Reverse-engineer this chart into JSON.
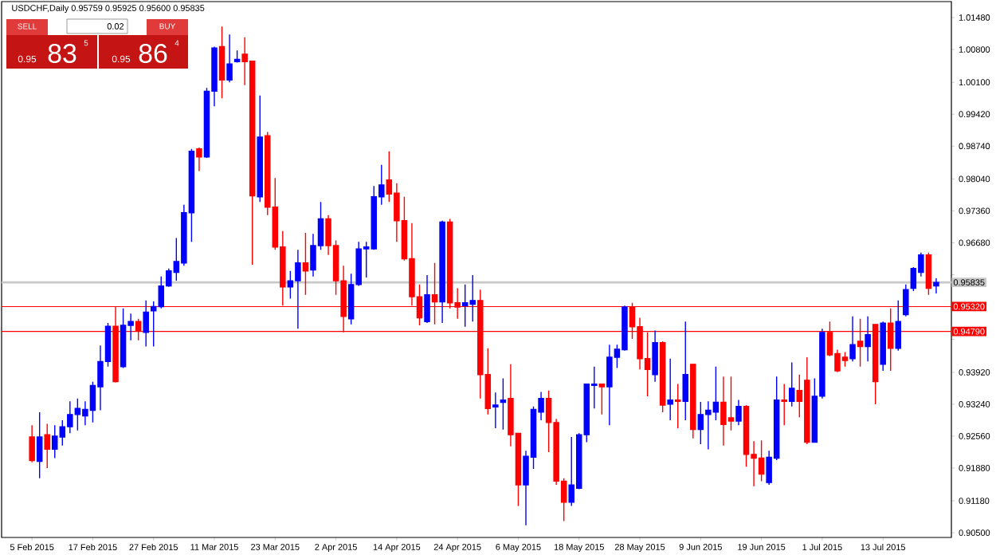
{
  "chart_data": {
    "type": "candlestick",
    "title": "USDCHF,Daily 0.95759 0.95925 0.95600 0.95835",
    "annotations": [
      "SELL",
      "0.02",
      "BUY",
      "0.95",
      "83",
      "5",
      "0.95",
      "86",
      "4"
    ],
    "categories": [
      "5 Feb 2015",
      null,
      null,
      null,
      null,
      null,
      null,
      null,
      "17 Feb 2015",
      null,
      null,
      null,
      null,
      null,
      null,
      null,
      "27 Feb 2015",
      null,
      null,
      null,
      null,
      null,
      null,
      null,
      "11 Mar 2015",
      null,
      null,
      null,
      null,
      null,
      null,
      null,
      "23 Mar 2015",
      null,
      null,
      null,
      null,
      null,
      null,
      null,
      "2 Apr 2015",
      null,
      null,
      null,
      null,
      null,
      null,
      null,
      "14 Apr 2015",
      null,
      null,
      null,
      null,
      null,
      null,
      null,
      "24 Apr 2015",
      null,
      null,
      null,
      null,
      null,
      null,
      null,
      "6 May 2015",
      null,
      null,
      null,
      null,
      null,
      null,
      null,
      "18 May 2015",
      null,
      null,
      null,
      null,
      null,
      null,
      null,
      "28 May 2015",
      null,
      null,
      null,
      null,
      null,
      null,
      null,
      "9 Jun 2015",
      null,
      null,
      null,
      null,
      null,
      null,
      null,
      "19 Jun 2015",
      null,
      null,
      null,
      null,
      null,
      null,
      null,
      "1 Jul 2015",
      null,
      null,
      null,
      null,
      null,
      null,
      null,
      "13 Jul 2015",
      null,
      null,
      null,
      null,
      null,
      null,
      null
    ],
    "ohlc": [
      [
        0.9254,
        0.9279,
        0.92,
        0.9204
      ],
      [
        0.9202,
        0.9307,
        0.9166,
        0.9254
      ],
      [
        0.9259,
        0.9282,
        0.9188,
        0.9228
      ],
      [
        0.9228,
        0.9279,
        0.9209,
        0.9256
      ],
      [
        0.9254,
        0.929,
        0.9236,
        0.9276
      ],
      [
        0.9276,
        0.933,
        0.9262,
        0.9302
      ],
      [
        0.9302,
        0.9336,
        0.9268,
        0.9315
      ],
      [
        0.9299,
        0.933,
        0.9279,
        0.9313
      ],
      [
        0.9311,
        0.9372,
        0.9285,
        0.9364
      ],
      [
        0.9361,
        0.9449,
        0.9311,
        0.9415
      ],
      [
        0.9415,
        0.9497,
        0.9404,
        0.949
      ],
      [
        0.949,
        0.9531,
        0.937,
        0.9372
      ],
      [
        0.9404,
        0.9528,
        0.9401,
        0.9492
      ],
      [
        0.9492,
        0.9517,
        0.946,
        0.95
      ],
      [
        0.95,
        0.9506,
        0.946,
        0.9481
      ],
      [
        0.9477,
        0.9545,
        0.9447,
        0.952
      ],
      [
        0.9523,
        0.9543,
        0.9447,
        0.9532
      ],
      [
        0.9532,
        0.9596,
        0.9528,
        0.9576
      ],
      [
        0.9576,
        0.9613,
        0.9574,
        0.9608
      ],
      [
        0.9605,
        0.9678,
        0.9587,
        0.9628
      ],
      [
        0.9625,
        0.9749,
        0.9619,
        0.9732
      ],
      [
        0.9732,
        0.9868,
        0.967,
        0.9863
      ],
      [
        0.9868,
        0.9871,
        0.9821,
        0.9851
      ],
      [
        0.9851,
        0.9998,
        0.9849,
        0.9991
      ],
      [
        0.9991,
        1.0086,
        0.9959,
        1.0083
      ],
      [
        1.0086,
        1.0129,
        0.9976,
        1.0015
      ],
      [
        1.0015,
        1.0112,
        1.001,
        1.0049
      ],
      [
        1.0054,
        1.0078,
        1.0052,
        1.0059
      ],
      [
        1.007,
        1.0106,
        1.0004,
        1.0054
      ],
      [
        1.0055,
        1.0055,
        0.9621,
        0.9768
      ],
      [
        0.9766,
        0.9982,
        0.9755,
        0.9893
      ],
      [
        0.9896,
        0.9904,
        0.9727,
        0.9744
      ],
      [
        0.9744,
        0.9806,
        0.9653,
        0.9659
      ],
      [
        0.9659,
        0.9693,
        0.9534,
        0.9574
      ],
      [
        0.9574,
        0.9608,
        0.9549,
        0.9587
      ],
      [
        0.9587,
        0.9653,
        0.9485,
        0.9625
      ],
      [
        0.9625,
        0.9689,
        0.9557,
        0.9608
      ],
      [
        0.961,
        0.9687,
        0.9596,
        0.9662
      ],
      [
        0.9662,
        0.9755,
        0.9653,
        0.9719
      ],
      [
        0.9719,
        0.9727,
        0.9642,
        0.9662
      ],
      [
        0.9662,
        0.9673,
        0.9557,
        0.9587
      ],
      [
        0.9587,
        0.9619,
        0.9477,
        0.9511
      ],
      [
        0.9506,
        0.9602,
        0.9494,
        0.9579
      ],
      [
        0.9579,
        0.967,
        0.9576,
        0.9655
      ],
      [
        0.9655,
        0.967,
        0.9594,
        0.9659
      ],
      [
        0.9655,
        0.9789,
        0.9653,
        0.9766
      ],
      [
        0.9766,
        0.9834,
        0.9749,
        0.9791
      ],
      [
        0.9802,
        0.9863,
        0.9755,
        0.9772
      ],
      [
        0.9774,
        0.9795,
        0.967,
        0.9715
      ],
      [
        0.9715,
        0.9766,
        0.963,
        0.9634
      ],
      [
        0.9634,
        0.971,
        0.9534,
        0.9553
      ],
      [
        0.9553,
        0.9579,
        0.9492,
        0.9508
      ],
      [
        0.95,
        0.9599,
        0.9497,
        0.9557
      ],
      [
        0.9557,
        0.9625,
        0.9494,
        0.9542
      ],
      [
        0.9542,
        0.9715,
        0.9497,
        0.9712
      ],
      [
        0.9712,
        0.9719,
        0.9528,
        0.954
      ],
      [
        0.954,
        0.9571,
        0.9506,
        0.9531
      ],
      [
        0.9534,
        0.9579,
        0.9489,
        0.954
      ],
      [
        0.9537,
        0.9599,
        0.95,
        0.9545
      ],
      [
        0.9545,
        0.9568,
        0.9336,
        0.9387
      ],
      [
        0.9387,
        0.9443,
        0.9302,
        0.9315
      ],
      [
        0.9318,
        0.9349,
        0.9273,
        0.9322
      ],
      [
        0.9328,
        0.9379,
        0.927,
        0.9333
      ],
      [
        0.9336,
        0.9409,
        0.9234,
        0.9259
      ],
      [
        0.9262,
        0.9262,
        0.9107,
        0.9152
      ],
      [
        0.9152,
        0.9225,
        0.9066,
        0.9213
      ],
      [
        0.9211,
        0.9319,
        0.9186,
        0.9313
      ],
      [
        0.9307,
        0.935,
        0.929,
        0.9336
      ],
      [
        0.9336,
        0.9353,
        0.9222,
        0.9285
      ],
      [
        0.9285,
        0.9293,
        0.9152,
        0.916
      ],
      [
        0.916,
        0.9166,
        0.9075,
        0.9115
      ],
      [
        0.9115,
        0.9254,
        0.9107,
        0.9152
      ],
      [
        0.9145,
        0.9262,
        0.9143,
        0.9259
      ],
      [
        0.9259,
        0.9367,
        0.9243,
        0.9367
      ],
      [
        0.9364,
        0.9404,
        0.9315,
        0.9367
      ],
      [
        0.9367,
        0.9367,
        0.9302,
        0.9361
      ],
      [
        0.9361,
        0.9451,
        0.9279,
        0.9424
      ],
      [
        0.9424,
        0.9451,
        0.9401,
        0.9441
      ],
      [
        0.944,
        0.9534,
        0.9438,
        0.9531
      ],
      [
        0.9531,
        0.954,
        0.9463,
        0.9489
      ],
      [
        0.9489,
        0.9508,
        0.9398,
        0.9421
      ],
      [
        0.9421,
        0.9477,
        0.9341,
        0.9398
      ],
      [
        0.9387,
        0.9481,
        0.9372,
        0.9455
      ],
      [
        0.9455,
        0.9458,
        0.9307,
        0.9322
      ],
      [
        0.9324,
        0.9421,
        0.929,
        0.9333
      ],
      [
        0.9333,
        0.9367,
        0.9273,
        0.933
      ],
      [
        0.933,
        0.95,
        0.929,
        0.9387
      ],
      [
        0.9409,
        0.9409,
        0.9251,
        0.927
      ],
      [
        0.927,
        0.9329,
        0.9239,
        0.9302
      ],
      [
        0.9302,
        0.933,
        0.9228,
        0.9311
      ],
      [
        0.9307,
        0.9404,
        0.929,
        0.9328
      ],
      [
        0.9328,
        0.9383,
        0.9236,
        0.9281
      ],
      [
        0.9295,
        0.9383,
        0.9268,
        0.9288
      ],
      [
        0.9288,
        0.9333,
        0.9279,
        0.9319
      ],
      [
        0.9319,
        0.9322,
        0.9191,
        0.9217
      ],
      [
        0.9217,
        0.9245,
        0.9149,
        0.9209
      ],
      [
        0.9209,
        0.9247,
        0.916,
        0.9175
      ],
      [
        0.9157,
        0.9225,
        0.9152,
        0.9211
      ],
      [
        0.9209,
        0.9383,
        0.9205,
        0.9333
      ],
      [
        0.9333,
        0.9367,
        0.9279,
        0.933
      ],
      [
        0.933,
        0.9413,
        0.9319,
        0.9358
      ],
      [
        0.9353,
        0.9387,
        0.9296,
        0.933
      ],
      [
        0.9375,
        0.9424,
        0.9239,
        0.9243
      ],
      [
        0.9243,
        0.9379,
        0.9242,
        0.9341
      ],
      [
        0.9341,
        0.9485,
        0.9336,
        0.9477
      ],
      [
        0.9477,
        0.95,
        0.9426,
        0.9429
      ],
      [
        0.9432,
        0.944,
        0.9392,
        0.9395
      ],
      [
        0.9424,
        0.9435,
        0.9404,
        0.9417
      ],
      [
        0.9421,
        0.9511,
        0.9415,
        0.9451
      ],
      [
        0.9458,
        0.9506,
        0.9404,
        0.9447
      ],
      [
        0.9447,
        0.9511,
        0.9415,
        0.9472
      ],
      [
        0.9494,
        0.9494,
        0.9324,
        0.9372
      ],
      [
        0.9409,
        0.95,
        0.9395,
        0.9497
      ],
      [
        0.9497,
        0.9528,
        0.9395,
        0.9443
      ],
      [
        0.9443,
        0.9545,
        0.9438,
        0.95
      ],
      [
        0.9515,
        0.9579,
        0.9511,
        0.9568
      ],
      [
        0.9571,
        0.9616,
        0.9565,
        0.9613
      ],
      [
        0.9605,
        0.9647,
        0.9596,
        0.9642
      ],
      [
        0.9642,
        0.9647,
        0.9557,
        0.9571
      ],
      [
        0.95759,
        0.95925,
        0.956,
        0.95835
      ]
    ],
    "colors": [
      "#ff0000",
      "#0000ff",
      "#ff0000",
      "#0000ff",
      "#0000ff",
      "#0000ff",
      "#0000ff",
      "#0000ff",
      "#0000ff",
      "#0000ff",
      "#0000ff",
      "#ff0000",
      "#0000ff",
      "#0000ff",
      "#ff0000",
      "#0000ff",
      "#0000ff",
      "#0000ff",
      "#0000ff",
      "#0000ff",
      "#0000ff",
      "#0000ff",
      "#ff0000",
      "#0000ff",
      "#0000ff",
      "#ff0000",
      "#0000ff",
      "#0000ff",
      "#ff0000",
      "#ff0000",
      "#0000ff",
      "#ff0000",
      "#ff0000",
      "#ff0000",
      "#0000ff",
      "#0000ff",
      "#ff0000",
      "#0000ff",
      "#0000ff",
      "#ff0000",
      "#ff0000",
      "#ff0000",
      "#0000ff",
      "#0000ff",
      "#0000ff",
      "#0000ff",
      "#0000ff",
      "#ff0000",
      "#ff0000",
      "#ff0000",
      "#ff0000",
      "#ff0000",
      "#0000ff",
      "#ff0000",
      "#0000ff",
      "#ff0000",
      "#ff0000",
      "#0000ff",
      "#0000ff",
      "#ff0000",
      "#ff0000",
      "#0000ff",
      "#0000ff",
      "#ff0000",
      "#ff0000",
      "#0000ff",
      "#0000ff",
      "#0000ff",
      "#ff0000",
      "#ff0000",
      "#ff0000",
      "#0000ff",
      "#0000ff",
      "#0000ff",
      "#0000ff",
      "#ff0000",
      "#0000ff",
      "#0000ff",
      "#0000ff",
      "#ff0000",
      "#ff0000",
      "#ff0000",
      "#0000ff",
      "#ff0000",
      "#0000ff",
      "#ff0000",
      "#0000ff",
      "#ff0000",
      "#0000ff",
      "#0000ff",
      "#0000ff",
      "#ff0000",
      "#ff0000",
      "#0000ff",
      "#ff0000",
      "#ff0000",
      "#ff0000",
      "#0000ff",
      "#0000ff",
      "#ff0000",
      "#0000ff",
      "#ff0000",
      "#ff0000",
      "#0000ff",
      "#0000ff",
      "#ff0000",
      "#ff0000",
      "#ff0000",
      "#0000ff",
      "#ff0000",
      "#0000ff",
      "#ff0000",
      "#0000ff",
      "#ff0000",
      "#0000ff",
      "#0000ff",
      "#0000ff",
      "#0000ff",
      "#ff0000",
      "#0000ff"
    ],
    "ylim": [
      0.904,
      1.0182
    ],
    "yticks": [
      {
        "value": 1.0148,
        "label": "1.01480"
      },
      {
        "value": 1.008,
        "label": "1.00800"
      },
      {
        "value": 1.001,
        "label": "1.00100"
      },
      {
        "value": 0.9942,
        "label": "0.99420"
      },
      {
        "value": 0.9874,
        "label": "0.98740"
      },
      {
        "value": 0.9804,
        "label": "0.98040"
      },
      {
        "value": 0.9736,
        "label": "0.97360"
      },
      {
        "value": 0.9668,
        "label": "0.96680"
      },
      {
        "value": 0.96,
        "label": null
      },
      {
        "value": 0.9532,
        "label": null
      },
      {
        "value": 0.9462,
        "label": null
      },
      {
        "value": 0.9392,
        "label": "0.93920"
      },
      {
        "value": 0.9324,
        "label": "0.93240"
      },
      {
        "value": 0.9256,
        "label": "0.92560"
      },
      {
        "value": 0.9188,
        "label": "0.91880"
      },
      {
        "value": 0.9118,
        "label": "0.91180"
      },
      {
        "value": 0.905,
        "label": "0.90500"
      }
    ],
    "ref_lines": [
      {
        "axis": "y",
        "value": 0.95835,
        "label": "0.95835",
        "color": "#c8c8c8",
        "line_style": "solid"
      },
      {
        "axis": "y",
        "value": 0.9532,
        "label": "0.95320",
        "color": "#ff0000",
        "line_style": "solid"
      },
      {
        "axis": "y",
        "value": 0.9479,
        "label": "0.94790",
        "color": "#ff0000",
        "line_style": "solid"
      }
    ],
    "grid": false
  }
}
